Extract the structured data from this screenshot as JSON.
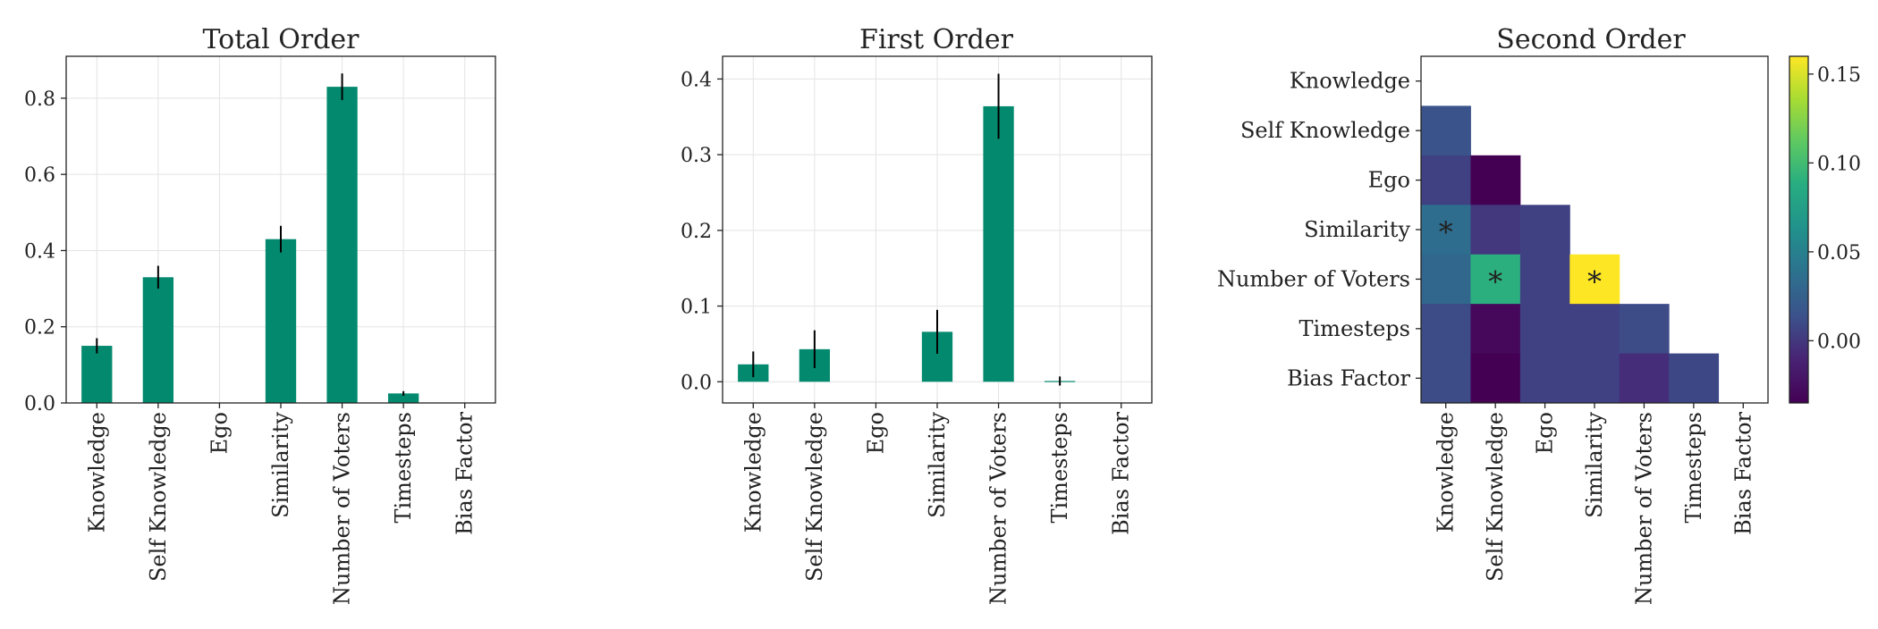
{
  "chart_data": [
    {
      "type": "bar",
      "title": "Total Order",
      "categories": [
        "Knowledge",
        "Self Knowledge",
        "Ego",
        "Similarity",
        "Number of Voters",
        "Timesteps",
        "Bias Factor"
      ],
      "values": [
        0.15,
        0.33,
        0.0,
        0.43,
        0.83,
        0.025,
        0.0
      ],
      "errors": [
        0.02,
        0.03,
        0.0,
        0.035,
        0.035,
        0.006,
        0.0
      ],
      "ylim": [
        0,
        0.91
      ],
      "yticks": [
        0.0,
        0.2,
        0.4,
        0.6,
        0.8
      ],
      "ytick_labels": [
        "0.0",
        "0.2",
        "0.4",
        "0.6",
        "0.8"
      ],
      "grid": true,
      "color": "#038a6e"
    },
    {
      "type": "bar",
      "title": "First Order",
      "categories": [
        "Knowledge",
        "Self Knowledge",
        "Ego",
        "Similarity",
        "Number of Voters",
        "Timesteps",
        "Bias Factor"
      ],
      "values": [
        0.023,
        0.043,
        0.0,
        0.066,
        0.364,
        0.001,
        0.0
      ],
      "errors": [
        0.017,
        0.025,
        0.0,
        0.029,
        0.043,
        0.006,
        0.0
      ],
      "ylim": [
        -0.028,
        0.43
      ],
      "yticks": [
        0.0,
        0.1,
        0.2,
        0.3,
        0.4
      ],
      "ytick_labels": [
        "0.0",
        "0.1",
        "0.2",
        "0.3",
        "0.4"
      ],
      "grid": true,
      "color": "#038a6e"
    },
    {
      "type": "heatmap",
      "title": "Second Order",
      "rows": [
        "Knowledge",
        "Self Knowledge",
        "Ego",
        "Similarity",
        "Number of Voters",
        "Timesteps",
        "Bias Factor"
      ],
      "columns": [
        "Knowledge",
        "Self Knowledge",
        "Ego",
        "Similarity",
        "Number of Voters",
        "Timesteps",
        "Bias Factor"
      ],
      "values": [
        [
          null,
          null,
          null,
          null,
          null,
          null,
          null
        ],
        [
          0.015,
          null,
          null,
          null,
          null,
          null,
          null
        ],
        [
          0.005,
          -0.035,
          null,
          null,
          null,
          null,
          null
        ],
        [
          0.035,
          0.0,
          0.005,
          null,
          null,
          null,
          null
        ],
        [
          0.03,
          0.09,
          0.005,
          0.16,
          null,
          null,
          null
        ],
        [
          0.01,
          -0.03,
          0.005,
          0.005,
          0.01,
          null,
          null
        ],
        [
          0.01,
          -0.035,
          0.005,
          0.005,
          -0.005,
          0.008,
          null
        ]
      ],
      "significant": [
        [
          3,
          0
        ],
        [
          4,
          1
        ],
        [
          4,
          3
        ]
      ],
      "significance_marker": "*",
      "colorbar": {
        "range": [
          -0.035,
          0.16
        ],
        "ticks": [
          0.0,
          0.05,
          0.1,
          0.15
        ],
        "tick_labels": [
          "0.00",
          "0.05",
          "0.10",
          "0.15"
        ],
        "colormap": "viridis"
      }
    }
  ]
}
